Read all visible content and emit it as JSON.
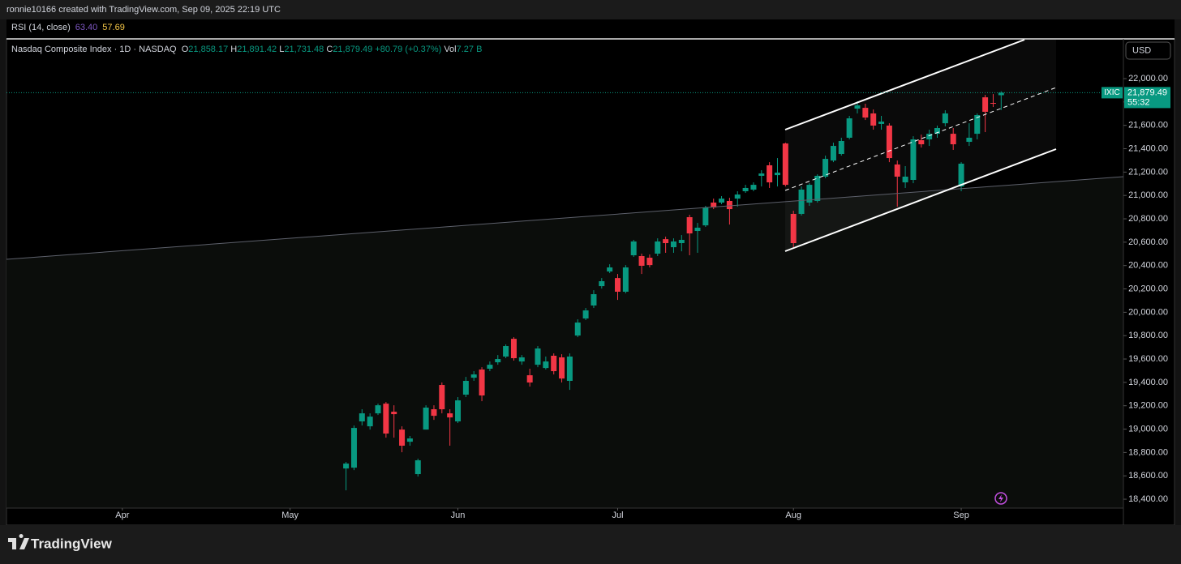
{
  "header": {
    "attribution": "ronnie10166 created with TradingView.com, Sep 09, 2025 22:19 UTC"
  },
  "indicator": {
    "name": "RSI (14, close)",
    "values": [
      "63.40",
      "57.69"
    ]
  },
  "chart_data": {
    "type": "candlestick",
    "title": "Nasdaq Composite Index · 1D · NASDAQ",
    "legend": {
      "open_label": "O",
      "open": "21,858.17",
      "high_label": "H",
      "high": "21,891.42",
      "low_label": "L",
      "low": "21,731.48",
      "close_label": "C",
      "close": "21,879.49",
      "change": "+80.79 (+0.37%)",
      "volume_label": "Vol",
      "volume": "7.27 B"
    },
    "currency": "USD",
    "x": [
      28,
      29,
      30,
      31,
      32,
      33,
      34,
      35,
      36,
      37,
      38,
      39,
      40,
      41,
      42,
      43,
      44,
      45,
      46,
      47,
      48,
      49,
      50,
      51,
      52,
      53,
      54,
      55,
      56,
      57,
      58,
      59,
      60,
      61,
      62,
      63,
      64,
      65,
      66,
      67,
      68,
      69,
      70,
      71,
      72,
      73,
      74,
      75,
      76,
      77,
      78,
      79,
      80,
      81,
      82,
      83,
      84,
      85,
      86,
      87,
      88,
      89,
      90,
      91,
      92,
      93,
      94,
      95,
      96,
      97,
      98,
      99,
      100,
      101,
      102,
      103,
      104,
      105,
      106,
      107,
      108,
      109,
      110
    ],
    "open": [
      18663,
      18670,
      19066,
      19024,
      19135,
      19218,
      19149,
      18996,
      18892,
      18615,
      18996,
      19170,
      19378,
      19135,
      19066,
      19295,
      19440,
      19510,
      19517,
      19572,
      19621,
      19773,
      19579,
      19461,
      19551,
      19523,
      19628,
      19614,
      19413,
      19801,
      19947,
      20058,
      20224,
      20349,
      20293,
      20176,
      20488,
      20481,
      20467,
      20502,
      20626,
      20557,
      20592,
      20814,
      20696,
      20744,
      20939,
      20939,
      20953,
      20973,
      21036,
      21050,
      21168,
      21258,
      21174,
      21445,
      20842,
      20842,
      20939,
      20953,
      21161,
      21299,
      21355,
      21494,
      21743,
      21750,
      21702,
      21612,
      21598,
      21265,
      21112,
      21133,
      21473,
      21480,
      21528,
      21618,
      21528,
      21077,
      21459,
      21528,
      21840,
      21792,
      21858.17
    ],
    "high": [
      18719,
      19031,
      19170,
      19135,
      19218,
      19232,
      19204,
      19024,
      18941,
      18747,
      19204,
      19204,
      19399,
      19170,
      19274,
      19447,
      19496,
      19530,
      19579,
      19634,
      19725,
      19787,
      19634,
      19517,
      19711,
      19621,
      19648,
      19641,
      19648,
      19940,
      20037,
      20189,
      20293,
      20411,
      20328,
      20404,
      20620,
      20502,
      20495,
      20633,
      20647,
      20633,
      20661,
      20835,
      20765,
      20911,
      20973,
      20994,
      20980,
      21036,
      21091,
      21112,
      21216,
      21285,
      21320,
      21452,
      20869,
      21077,
      21105,
      21181,
      21341,
      21452,
      21494,
      21681,
      21806,
      21785,
      21736,
      21681,
      21618,
      21299,
      21251,
      21507,
      21521,
      21563,
      21598,
      21729,
      21577,
      21285,
      21618,
      21702,
      21861,
      21868,
      21891.42
    ],
    "low": [
      18476,
      18649,
      19031,
      18996,
      19121,
      18927,
      18927,
      18802,
      18858,
      18594,
      18996,
      19079,
      19135,
      18858,
      19052,
      19274,
      19413,
      19239,
      19496,
      19551,
      19607,
      19586,
      19551,
      19364,
      19530,
      19510,
      19468,
      19399,
      19336,
      19787,
      19933,
      20037,
      20203,
      20335,
      20106,
      20162,
      20474,
      20328,
      20384,
      20481,
      20509,
      20509,
      20522,
      20488,
      20509,
      20731,
      20883,
      20925,
      20751,
      20904,
      21022,
      21036,
      21077,
      21064,
      21077,
      21077,
      20557,
      20828,
      20911,
      20939,
      21147,
      21285,
      21341,
      21480,
      21702,
      21646,
      21563,
      21563,
      21285,
      20904,
      21064,
      21105,
      21410,
      21424,
      21494,
      21591,
      21390,
      21036,
      21424,
      21480,
      21542,
      21757,
      21731.48
    ],
    "close": [
      18705,
      19010,
      19135,
      19107,
      19204,
      18962,
      19128,
      18858,
      18920,
      18733,
      19184,
      19114,
      19170,
      19100,
      19246,
      19413,
      19468,
      19288,
      19551,
      19600,
      19711,
      19607,
      19614,
      19399,
      19690,
      19579,
      19496,
      19433,
      19621,
      19912,
      20016,
      20155,
      20266,
      20384,
      20176,
      20384,
      20606,
      20398,
      20404,
      20606,
      20592,
      20606,
      20620,
      20675,
      20724,
      20897,
      20897,
      20973,
      20883,
      21008,
      21064,
      21091,
      21188,
      21112,
      21195,
      21091,
      20592,
      21050,
      21091,
      21168,
      21313,
      21424,
      21466,
      21660,
      21771,
      21667,
      21598,
      21632,
      21320,
      21161,
      21161,
      21480,
      21438,
      21528,
      21577,
      21702,
      21438,
      21272,
      21494,
      21688,
      21716,
      21785,
      21879.49
    ],
    "up_color": "#089981",
    "down_color": "#f23645",
    "xlim": [
      -14.5,
      125.3
    ],
    "xticks": [
      {
        "value": 0,
        "label": "Apr"
      },
      {
        "value": 21,
        "label": "May"
      },
      {
        "value": 42,
        "label": "Jun"
      },
      {
        "value": 62,
        "label": "Jul"
      },
      {
        "value": 84,
        "label": "Aug"
      },
      {
        "value": 105,
        "label": "Sep"
      }
    ],
    "ylim": [
      18324,
      22340
    ],
    "yticks": [
      {
        "value": 18400,
        "label": "18,400.00"
      },
      {
        "value": 18600,
        "label": "18,600.00"
      },
      {
        "value": 18800,
        "label": "18,800.00"
      },
      {
        "value": 19000,
        "label": "19,000.00"
      },
      {
        "value": 19200,
        "label": "19,200.00"
      },
      {
        "value": 19400,
        "label": "19,400.00"
      },
      {
        "value": 19600,
        "label": "19,600.00"
      },
      {
        "value": 19800,
        "label": "19,800.00"
      },
      {
        "value": 20000,
        "label": "20,000.00"
      },
      {
        "value": 20200,
        "label": "20,200.00"
      },
      {
        "value": 20400,
        "label": "20,400.00"
      },
      {
        "value": 20600,
        "label": "20,600.00"
      },
      {
        "value": 20800,
        "label": "20,800.00"
      },
      {
        "value": 21000,
        "label": "21,000.00"
      },
      {
        "value": 21200,
        "label": "21,200.00"
      },
      {
        "value": 21400,
        "label": "21,400.00"
      },
      {
        "value": 21600,
        "label": "21,600.00"
      },
      {
        "value": 21800,
        "label": "21,800.00"
      },
      {
        "value": 22000,
        "label": "22,000.00"
      }
    ],
    "last_price": {
      "symbol": "IXIC",
      "value_label": "21,879.49",
      "countdown": "55:32"
    }
  },
  "footer": {
    "brand": "TradingView"
  }
}
